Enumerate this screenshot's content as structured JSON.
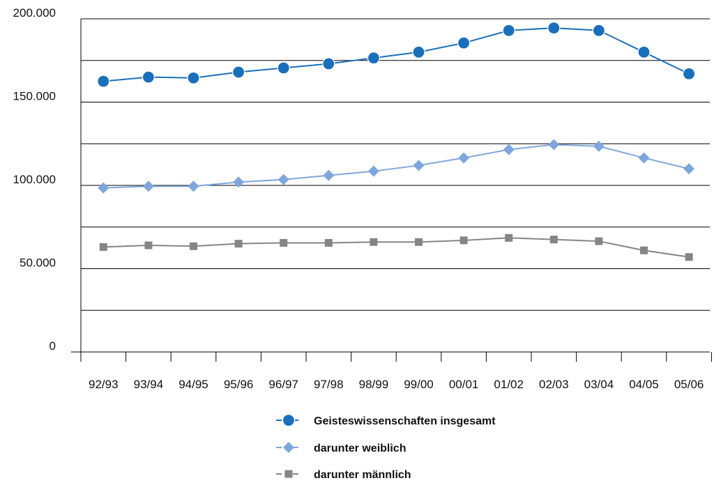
{
  "chart_data": {
    "type": "line",
    "categories": [
      "92/93",
      "93/94",
      "94/95",
      "95/96",
      "96/97",
      "97/98",
      "98/99",
      "99/00",
      "00/01",
      "01/02",
      "02/03",
      "03/04",
      "04/05",
      "05/06"
    ],
    "y_tick_labels": [
      "0",
      "",
      "50.000",
      "",
      "100.000",
      "",
      "150.000",
      "",
      "200.000"
    ],
    "y_tick_values": [
      0,
      25000,
      50000,
      75000,
      100000,
      125000,
      150000,
      175000,
      200000
    ],
    "ylim": [
      0,
      200000
    ],
    "grid": true,
    "legend_position": "bottom",
    "series": [
      {
        "name": "Geisteswissenschaften insgesamt",
        "color": "#1a6fba",
        "marker": "circle",
        "values": [
          162500,
          165000,
          164500,
          168000,
          170500,
          173000,
          176500,
          180000,
          185500,
          193000,
          194500,
          193000,
          180000,
          167000
        ]
      },
      {
        "name": "darunter weiblich",
        "color": "#7ea6dc",
        "marker": "diamond",
        "values": [
          98500,
          99500,
          99500,
          102000,
          103500,
          106000,
          108500,
          112000,
          116500,
          121500,
          124500,
          123500,
          116500,
          110000
        ]
      },
      {
        "name": "darunter männlich",
        "color": "#858585",
        "marker": "square",
        "values": [
          63000,
          64000,
          63500,
          65000,
          65500,
          65500,
          66000,
          66000,
          67000,
          68500,
          67500,
          66500,
          61000,
          57000
        ]
      }
    ]
  }
}
